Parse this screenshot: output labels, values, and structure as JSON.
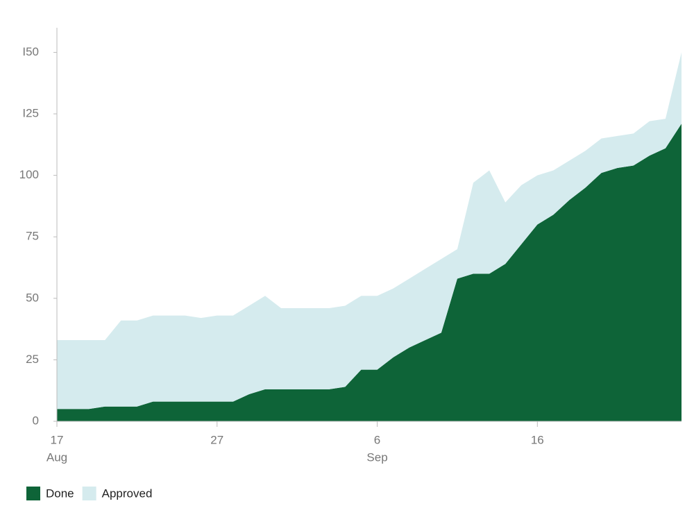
{
  "chart_data": {
    "type": "stacked-area",
    "x": [
      "Aug 17",
      "Aug 18",
      "Aug 19",
      "Aug 20",
      "Aug 21",
      "Aug 22",
      "Aug 23",
      "Aug 24",
      "Aug 25",
      "Aug 26",
      "Aug 27",
      "Aug 28",
      "Aug 29",
      "Aug 30",
      "Aug 31",
      "Sep 1",
      "Sep 2",
      "Sep 3",
      "Sep 4",
      "Sep 5",
      "Sep 6",
      "Sep 7",
      "Sep 8",
      "Sep 9",
      "Sep 10",
      "Sep 11",
      "Sep 12",
      "Sep 13",
      "Sep 14",
      "Sep 15",
      "Sep 16",
      "Sep 17",
      "Sep 18",
      "Sep 19",
      "Sep 20",
      "Sep 21",
      "Sep 22",
      "Sep 23",
      "Sep 24",
      "Sep 25"
    ],
    "series": [
      {
        "name": "Done",
        "color": "#0e6438",
        "values": [
          5,
          5,
          5,
          6,
          6,
          6,
          8,
          8,
          8,
          8,
          8,
          8,
          11,
          13,
          13,
          13,
          13,
          13,
          14,
          21,
          21,
          26,
          30,
          33,
          36,
          58,
          60,
          60,
          64,
          72,
          80,
          84,
          90,
          95,
          101,
          103,
          104,
          108,
          111,
          121
        ]
      },
      {
        "name": "Approved",
        "color": "#d5ebee",
        "values": [
          28,
          28,
          28,
          27,
          35,
          35,
          35,
          35,
          35,
          34,
          35,
          35,
          36,
          38,
          33,
          33,
          33,
          33,
          33,
          30,
          30,
          28,
          28,
          29,
          30,
          12,
          37,
          42,
          25,
          24,
          20,
          18,
          16,
          15,
          14,
          13,
          13,
          14,
          12,
          29
        ]
      }
    ],
    "ylim": [
      0,
      160
    ],
    "yticks": [
      0,
      25,
      50,
      75,
      100,
      {
        "value": 125,
        "label": "I25"
      },
      {
        "value": 150,
        "label": "I50"
      }
    ],
    "xticks": [
      {
        "value": "Aug 17",
        "label": "17"
      },
      {
        "value": "Aug 27",
        "label": "27"
      },
      {
        "value": "Sep 6",
        "label": "6"
      },
      {
        "value": "Sep 16",
        "label": "16"
      }
    ],
    "xtick_months": [
      {
        "value": "Aug 17",
        "label": "Aug"
      },
      {
        "value": "Sep 6",
        "label": "Sep"
      }
    ],
    "legend": "bottom-left"
  }
}
